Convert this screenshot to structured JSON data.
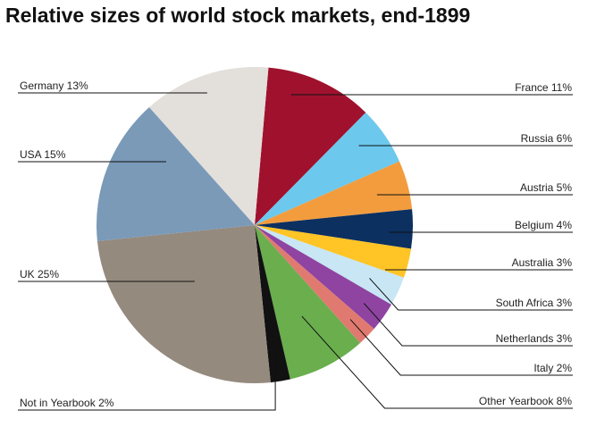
{
  "chart_data": {
    "type": "pie",
    "title": "Relative sizes of world stock markets, end-1899",
    "slices": [
      {
        "label": "France 11%",
        "name": "France",
        "value": 11,
        "color": "#A0112E"
      },
      {
        "label": "Russia 6%",
        "name": "Russia",
        "value": 6,
        "color": "#6CC8EC"
      },
      {
        "label": "Austria 5%",
        "name": "Austria",
        "value": 5,
        "color": "#F39C3E"
      },
      {
        "label": "Belgium 4%",
        "name": "Belgium",
        "value": 4,
        "color": "#0C3060"
      },
      {
        "label": "Australia 3%",
        "name": "Australia",
        "value": 3,
        "color": "#FFC425"
      },
      {
        "label": "South Africa 3%",
        "name": "South Africa",
        "value": 3,
        "color": "#C8E6F4"
      },
      {
        "label": "Netherlands 3%",
        "name": "Netherlands",
        "value": 3,
        "color": "#8E44A0"
      },
      {
        "label": "Italy 2%",
        "name": "Italy",
        "value": 2,
        "color": "#E07A70"
      },
      {
        "label": "Other Yearbook 8%",
        "name": "Other Yearbook",
        "value": 8,
        "color": "#6AAE4E"
      },
      {
        "label": "Not in Yearbook 2%",
        "name": "Not in Yearbook",
        "value": 2,
        "color": "#111111"
      },
      {
        "label": "UK 25%",
        "name": "UK",
        "value": 25,
        "color": "#958A7E"
      },
      {
        "label": "USA 15%",
        "name": "USA",
        "value": 15,
        "color": "#7A9AB8"
      },
      {
        "label": "Germany 13%",
        "name": "Germany",
        "value": 13,
        "color": "#E3DFDA"
      }
    ]
  }
}
